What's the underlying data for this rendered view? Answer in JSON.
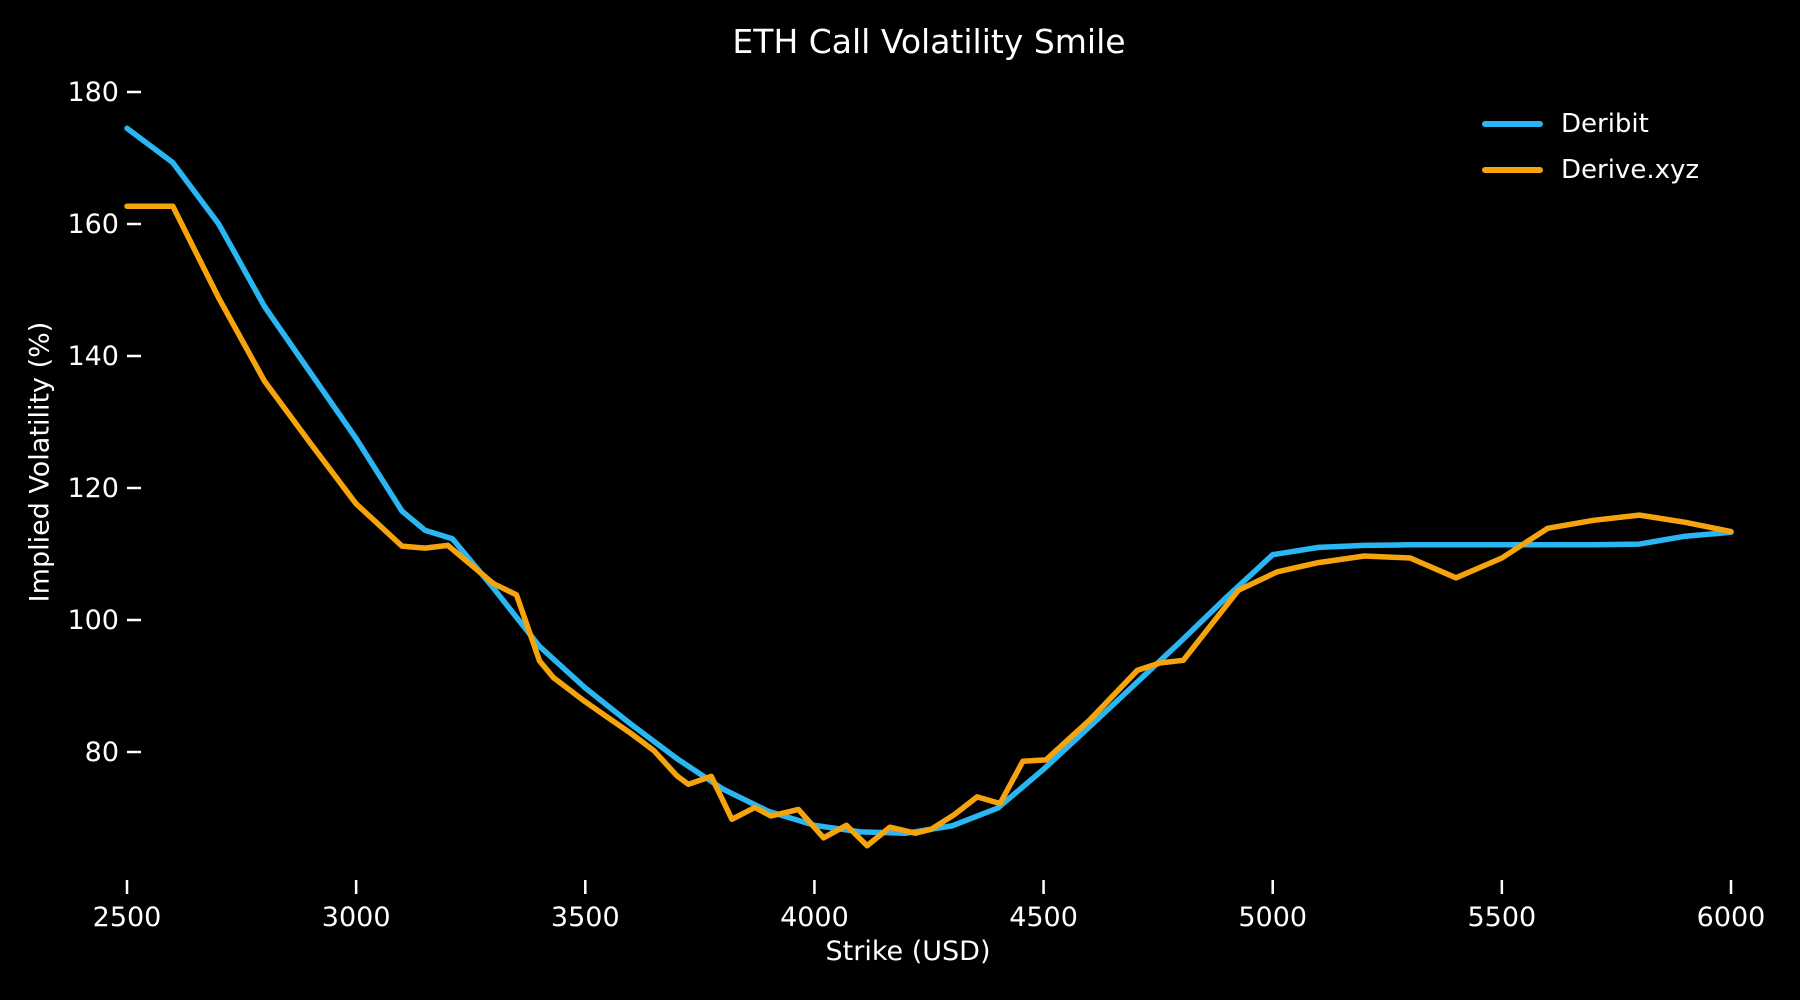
{
  "chart": {
    "title": "ETH Call Volatility Smile",
    "xlabel": "Strike (USD)",
    "ylabel": "Implied Volatility (%)",
    "background_color": "#000000",
    "text_color": "#ffffff"
  },
  "legend": {
    "position": "upper-right",
    "items": [
      {
        "label": "Deribit",
        "color": "#29b6f2"
      },
      {
        "label": "Derive.xyz",
        "color": "#f6a40e"
      }
    ]
  },
  "chart_data": {
    "type": "line",
    "title": "ETH Call Volatility Smile",
    "xlabel": "Strike (USD)",
    "ylabel": "Implied Volatility (%)",
    "grid": false,
    "legend_position": "upper-right",
    "x_range": [
      2500,
      6000
    ],
    "y_tick_range": [
      80,
      180
    ],
    "x_ticks": [
      2500,
      3000,
      3500,
      4000,
      4500,
      5000,
      5500,
      6000
    ],
    "y_ticks": [
      80,
      100,
      120,
      140,
      160,
      180
    ],
    "series": [
      {
        "name": "Deribit",
        "color": "#29b6f2",
        "points": [
          [
            2500,
            174.5
          ],
          [
            2600,
            169.3
          ],
          [
            2700,
            160
          ],
          [
            2800,
            147.5
          ],
          [
            2900,
            137.5
          ],
          [
            3000,
            127.5
          ],
          [
            3100,
            116.5
          ],
          [
            3150,
            113.6
          ],
          [
            3210,
            112.3
          ],
          [
            3300,
            104.8
          ],
          [
            3400,
            96
          ],
          [
            3500,
            89.7
          ],
          [
            3600,
            84.2
          ],
          [
            3700,
            79
          ],
          [
            3800,
            74.4
          ],
          [
            3900,
            71
          ],
          [
            4000,
            68.9
          ],
          [
            4100,
            67.9
          ],
          [
            4200,
            67.7
          ],
          [
            4300,
            68.8
          ],
          [
            4400,
            71.5
          ],
          [
            4500,
            77.4
          ],
          [
            4600,
            83.8
          ],
          [
            4700,
            90.3
          ],
          [
            4800,
            96.8
          ],
          [
            4900,
            103.5
          ],
          [
            5000,
            109.9
          ],
          [
            5100,
            111
          ],
          [
            5200,
            111.3
          ],
          [
            5300,
            111.4
          ],
          [
            5400,
            111.4
          ],
          [
            5500,
            111.4
          ],
          [
            5600,
            111.4
          ],
          [
            5700,
            111.4
          ],
          [
            5800,
            111.5
          ],
          [
            5900,
            112.7
          ],
          [
            6000,
            113.3
          ]
        ]
      },
      {
        "name": "Derive.xyz",
        "color": "#f6a40e",
        "points": [
          [
            2500,
            162.7
          ],
          [
            2600,
            162.7
          ],
          [
            2700,
            148.8
          ],
          [
            2800,
            136.2
          ],
          [
            2900,
            126.8
          ],
          [
            3000,
            117.6
          ],
          [
            3100,
            111.2
          ],
          [
            3150,
            110.9
          ],
          [
            3200,
            111.3
          ],
          [
            3300,
            105.5
          ],
          [
            3350,
            103.8
          ],
          [
            3400,
            93.8
          ],
          [
            3430,
            91.3
          ],
          [
            3500,
            87.6
          ],
          [
            3550,
            85.2
          ],
          [
            3600,
            82.8
          ],
          [
            3650,
            80.2
          ],
          [
            3700,
            76.4
          ],
          [
            3725,
            75.1
          ],
          [
            3775,
            76.3
          ],
          [
            3820,
            69.8
          ],
          [
            3870,
            71.6
          ],
          [
            3905,
            70.3
          ],
          [
            3965,
            71.3
          ],
          [
            4020,
            67.0
          ],
          [
            4070,
            68.9
          ],
          [
            4115,
            65.8
          ],
          [
            4165,
            68.6
          ],
          [
            4220,
            67.7
          ],
          [
            4255,
            68.3
          ],
          [
            4305,
            70.5
          ],
          [
            4355,
            73.2
          ],
          [
            4405,
            72.2
          ],
          [
            4455,
            78.6
          ],
          [
            4505,
            78.8
          ],
          [
            4600,
            84.8
          ],
          [
            4705,
            92.4
          ],
          [
            4755,
            93.5
          ],
          [
            4805,
            93.9
          ],
          [
            4925,
            104.5
          ],
          [
            5010,
            107.3
          ],
          [
            5100,
            108.7
          ],
          [
            5200,
            109.7
          ],
          [
            5300,
            109.4
          ],
          [
            5400,
            106.4
          ],
          [
            5500,
            109.4
          ],
          [
            5600,
            113.9
          ],
          [
            5700,
            115.1
          ],
          [
            5800,
            115.9
          ],
          [
            5900,
            114.8
          ],
          [
            6000,
            113.4
          ]
        ]
      }
    ]
  }
}
